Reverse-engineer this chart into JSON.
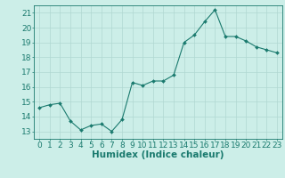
{
  "x": [
    0,
    1,
    2,
    3,
    4,
    5,
    6,
    7,
    8,
    9,
    10,
    11,
    12,
    13,
    14,
    15,
    16,
    17,
    18,
    19,
    20,
    21,
    22,
    23
  ],
  "y": [
    14.6,
    14.8,
    14.9,
    13.7,
    13.1,
    13.4,
    13.5,
    13.0,
    13.8,
    16.3,
    16.1,
    16.4,
    16.4,
    16.8,
    19.0,
    19.5,
    20.4,
    21.2,
    19.4,
    19.4,
    19.1,
    18.7,
    18.5,
    18.3
  ],
  "line_color": "#1a7a6e",
  "marker": "D",
  "marker_size": 2.0,
  "bg_color": "#cceee8",
  "grid_color": "#b0d8d2",
  "xlabel": "Humidex (Indice chaleur)",
  "xlim": [
    -0.5,
    23.5
  ],
  "ylim": [
    12.5,
    21.5
  ],
  "yticks": [
    13,
    14,
    15,
    16,
    17,
    18,
    19,
    20,
    21
  ],
  "xticks": [
    0,
    1,
    2,
    3,
    4,
    5,
    6,
    7,
    8,
    9,
    10,
    11,
    12,
    13,
    14,
    15,
    16,
    17,
    18,
    19,
    20,
    21,
    22,
    23
  ],
  "tick_color": "#1a7a6e",
  "label_color": "#1a7a6e",
  "font_size": 6.5,
  "xlabel_fontsize": 7.5
}
